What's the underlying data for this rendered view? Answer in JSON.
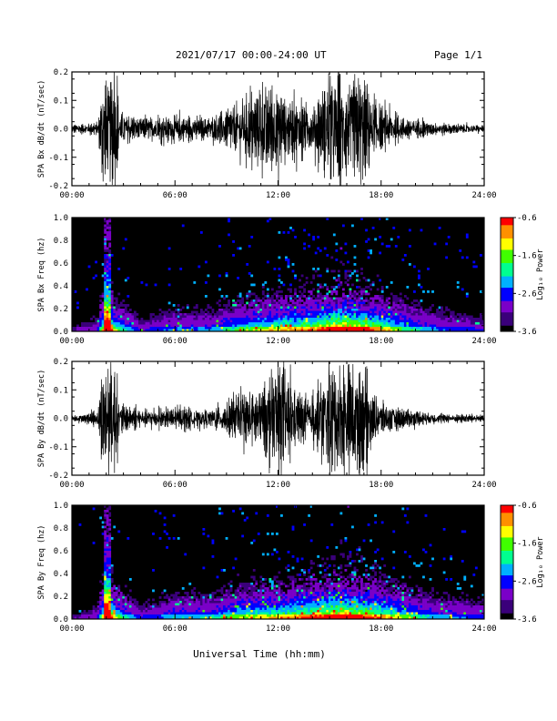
{
  "header": {
    "title": "2021/07/17  00:00-24:00 UT",
    "page": "Page 1/1"
  },
  "xlabel": "Universal Time (hh:mm)",
  "colors": {
    "trace": "#000000",
    "spectrogram_bg": "#000000",
    "colorscale": [
      "#000000",
      "#3a007a",
      "#7a00c8",
      "#0000ff",
      "#00b0ff",
      "#00ff90",
      "#40ff00",
      "#ffff00",
      "#ff9000",
      "#ff0000"
    ]
  },
  "chart_data": [
    {
      "type": "line",
      "name": "bx-waveform",
      "ylabel": "SPA Bx dB/dt (nT/sec)",
      "xticks": [
        "00:00",
        "06:00",
        "12:00",
        "18:00",
        "24:00"
      ],
      "xlim_hours": [
        0,
        24
      ],
      "yticks": [
        "0.2",
        "0.1",
        "0.0",
        "-0.1",
        "-0.2"
      ],
      "ylim": [
        -0.2,
        0.2
      ],
      "grid": false,
      "envelope": [
        {
          "t": 0,
          "a": 0.02
        },
        {
          "t": 1.5,
          "a": 0.03
        },
        {
          "t": 1.8,
          "a": 0.25
        },
        {
          "t": 2.5,
          "a": 0.25
        },
        {
          "t": 2.8,
          "a": 0.08
        },
        {
          "t": 4,
          "a": 0.05
        },
        {
          "t": 6,
          "a": 0.06
        },
        {
          "t": 8,
          "a": 0.05
        },
        {
          "t": 9.5,
          "a": 0.12
        },
        {
          "t": 10.5,
          "a": 0.15
        },
        {
          "t": 11.5,
          "a": 0.22
        },
        {
          "t": 12.5,
          "a": 0.14
        },
        {
          "t": 14,
          "a": 0.1
        },
        {
          "t": 15,
          "a": 0.25
        },
        {
          "t": 17,
          "a": 0.25
        },
        {
          "t": 17.5,
          "a": 0.12
        },
        {
          "t": 19,
          "a": 0.06
        },
        {
          "t": 21,
          "a": 0.03
        },
        {
          "t": 24,
          "a": 0.015
        }
      ]
    },
    {
      "type": "heatmap",
      "name": "bx-spectrogram",
      "ylabel": "SPA Bx Freq (hz)",
      "xticks": [
        "00:00",
        "06:00",
        "12:00",
        "18:00",
        "24:00"
      ],
      "xlim_hours": [
        0,
        24
      ],
      "yticks": [
        "1.0",
        "0.8",
        "0.6",
        "0.4",
        "0.2",
        "0.0"
      ],
      "ylim": [
        0,
        1.0
      ],
      "colorbar": {
        "label": "Log₁₀ Power",
        "ticks": [
          "-0.6",
          "-1.6",
          "-2.6",
          "-3.6"
        ],
        "range": [
          -3.6,
          -0.6
        ]
      },
      "activity": [
        {
          "t": 0,
          "a": 0.1
        },
        {
          "t": 1.5,
          "a": 0.2
        },
        {
          "t": 2,
          "a": 0.9
        },
        {
          "t": 2.6,
          "a": 0.5
        },
        {
          "t": 4,
          "a": 0.2
        },
        {
          "t": 6,
          "a": 0.3
        },
        {
          "t": 8,
          "a": 0.3
        },
        {
          "t": 10,
          "a": 0.5
        },
        {
          "t": 12,
          "a": 0.6
        },
        {
          "t": 14,
          "a": 0.7
        },
        {
          "t": 15.5,
          "a": 0.9
        },
        {
          "t": 17,
          "a": 0.8
        },
        {
          "t": 19,
          "a": 0.5
        },
        {
          "t": 21,
          "a": 0.3
        },
        {
          "t": 24,
          "a": 0.2
        }
      ]
    },
    {
      "type": "line",
      "name": "by-waveform",
      "ylabel": "SPA By dB/dt (nT/sec)",
      "xticks": [
        "00:00",
        "06:00",
        "12:00",
        "18:00",
        "24:00"
      ],
      "xlim_hours": [
        0,
        24
      ],
      "yticks": [
        "0.2",
        "0.1",
        "0.0",
        "-0.1",
        "-0.2"
      ],
      "ylim": [
        -0.2,
        0.2
      ],
      "grid": false,
      "envelope": [
        {
          "t": 0,
          "a": 0.015
        },
        {
          "t": 1.5,
          "a": 0.03
        },
        {
          "t": 1.8,
          "a": 0.25
        },
        {
          "t": 2.5,
          "a": 0.25
        },
        {
          "t": 2.8,
          "a": 0.07
        },
        {
          "t": 4,
          "a": 0.04
        },
        {
          "t": 6,
          "a": 0.05
        },
        {
          "t": 8,
          "a": 0.04
        },
        {
          "t": 9.5,
          "a": 0.1
        },
        {
          "t": 10.5,
          "a": 0.13
        },
        {
          "t": 11.5,
          "a": 0.2
        },
        {
          "t": 12.2,
          "a": 0.25
        },
        {
          "t": 13,
          "a": 0.12
        },
        {
          "t": 14,
          "a": 0.1
        },
        {
          "t": 15,
          "a": 0.25
        },
        {
          "t": 17,
          "a": 0.25
        },
        {
          "t": 17.5,
          "a": 0.1
        },
        {
          "t": 19,
          "a": 0.05
        },
        {
          "t": 21,
          "a": 0.025
        },
        {
          "t": 24,
          "a": 0.015
        }
      ]
    },
    {
      "type": "heatmap",
      "name": "by-spectrogram",
      "ylabel": "SPA By Freq (hz)",
      "xticks": [
        "00:00",
        "06:00",
        "12:00",
        "18:00",
        "24:00"
      ],
      "xlim_hours": [
        0,
        24
      ],
      "yticks": [
        "1.0",
        "0.8",
        "0.6",
        "0.4",
        "0.2",
        "0.0"
      ],
      "ylim": [
        0,
        1.0
      ],
      "colorbar": {
        "label": "Log₁₀ Power",
        "ticks": [
          "-0.6",
          "-1.6",
          "-2.6",
          "-3.6"
        ],
        "range": [
          -3.6,
          -0.6
        ]
      },
      "activity": [
        {
          "t": 0,
          "a": 0.1
        },
        {
          "t": 1.5,
          "a": 0.2
        },
        {
          "t": 2,
          "a": 0.9
        },
        {
          "t": 2.6,
          "a": 0.5
        },
        {
          "t": 4,
          "a": 0.2
        },
        {
          "t": 6,
          "a": 0.35
        },
        {
          "t": 8,
          "a": 0.35
        },
        {
          "t": 10,
          "a": 0.55
        },
        {
          "t": 12,
          "a": 0.6
        },
        {
          "t": 14,
          "a": 0.75
        },
        {
          "t": 15.5,
          "a": 0.9
        },
        {
          "t": 17,
          "a": 0.8
        },
        {
          "t": 19,
          "a": 0.55
        },
        {
          "t": 21,
          "a": 0.35
        },
        {
          "t": 24,
          "a": 0.25
        }
      ]
    }
  ]
}
